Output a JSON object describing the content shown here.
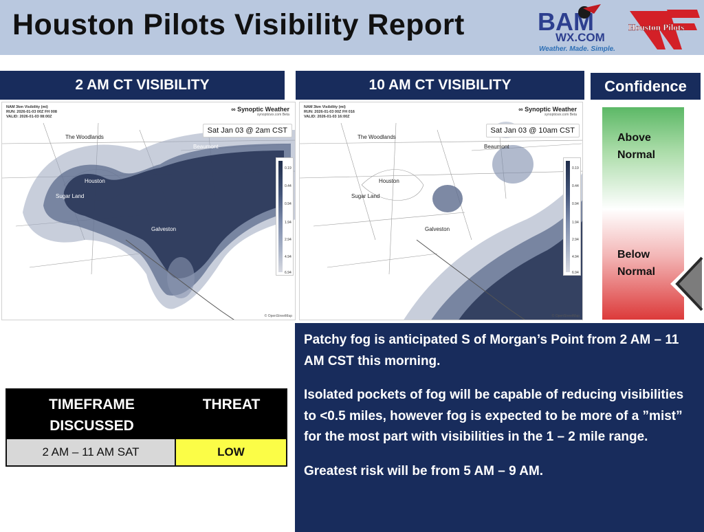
{
  "header": {
    "title": "Houston Pilots Visibility Report",
    "bam_logo_top": "BAM",
    "bam_logo_url": "WX.COM",
    "bam_tagline": "Weather. Made. Simple.",
    "pilots_logo": "Houston Pilots"
  },
  "panels": {
    "left_heading": "2 AM CT VISIBILITY",
    "right_heading": "10 AM CT VISIBILITY",
    "confidence_heading": "Confidence"
  },
  "map_left": {
    "meta_line1": "NAM 3km Visibility (mi)",
    "meta_line2": "RUN: 2026-01-03 00Z FH 008",
    "meta_line3": "VALID: 2026-01-03 08:00Z",
    "brand": "∞ Synoptic Weather",
    "brand_url": "synopticwx.com Beta",
    "stamp": "Sat Jan 03 @ 2am CST",
    "cities": {
      "woodlands": "The Woodlands",
      "houston": "Houston",
      "sugarland": "Sugar Land",
      "beaumont": "Beaumont",
      "galveston": "Galveston"
    },
    "attribution": "© OpenStreetMap"
  },
  "map_right": {
    "meta_line1": "NAM 3km Visibility (mi)",
    "meta_line2": "RUN: 2026-01-03 00Z FH 016",
    "meta_line3": "VALID: 2026-01-03 16:00Z",
    "brand": "∞ Synoptic Weather",
    "brand_url": "synopticwx.com Beta",
    "stamp": "Sat Jan 03 @ 10am CST",
    "cities": {
      "woodlands": "The Woodlands",
      "houston": "Houston",
      "sugarland": "Sugar Land",
      "beaumont": "Beaumont",
      "galveston": "Galveston"
    },
    "attribution": "© OpenStreetMap"
  },
  "legend_ticks": [
    "0.19",
    "0.44",
    "0.94",
    "1.94",
    "2.94",
    "4.94",
    "6.94"
  ],
  "confidence": {
    "above": "Above Normal",
    "below": "Below Normal",
    "level": "Below Normal",
    "colors": {
      "high": "#5cb866",
      "mid": "#ffffff",
      "low": "#dc3a3a"
    }
  },
  "threat_table": {
    "col_timeframe": "TIMEFRAME DISCUSSED",
    "col_threat": "THREAT",
    "timeframe": "2 AM – 11 AM SAT",
    "threat": "LOW",
    "threat_color": "#fbfd47"
  },
  "discussion": {
    "para1": "Patchy fog is anticipated S of Morgan’s Point from 2 AM – 11 AM CST this morning.",
    "para2": "Isolated pockets of fog will be capable of reducing visibilities to <0.5 miles, however fog is expected to be more of a ”mist” for the most part with visibilities in the 1 – 2 mile range.",
    "para3": "Greatest risk will be from 5 AM – 9 AM."
  },
  "colors": {
    "navy": "#182c5c",
    "header_bg": "#b9c8df"
  }
}
